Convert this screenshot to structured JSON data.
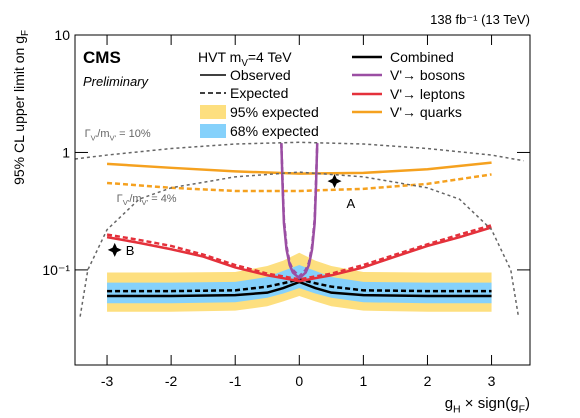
{
  "chart_data": {
    "type": "line",
    "lumi_label": "138 fb⁻¹ (13 TeV)",
    "experiment": "CMS",
    "status": "Preliminary",
    "y_label": [
      "95% CL upper limit on g",
      "F"
    ],
    "x_label": [
      "g",
      "H",
      " × sign(g",
      "F",
      ")"
    ],
    "log_y": true,
    "xlim": [
      -3.5,
      3.6
    ],
    "ylim": [
      0.0155,
      10
    ],
    "xticks": [
      -3,
      -2,
      -1,
      0,
      1,
      2,
      3
    ],
    "yticks": [
      {
        "value": 0.1,
        "label": "10⁻¹"
      },
      1,
      10
    ],
    "legend_header": [
      "HVT m",
      "V",
      "=4 TeV"
    ],
    "legend": [
      {
        "label": "Observed",
        "color": "#000000",
        "style": "solid"
      },
      {
        "label": "Expected",
        "color": "#000000",
        "style": "dashed"
      },
      {
        "label": "95% expected",
        "color": "#fddf7f",
        "style": "band"
      },
      {
        "label": "68% expected",
        "color": "#85d1fb",
        "style": "band"
      },
      {
        "label": "Combined",
        "color": "#000000",
        "style": "solid"
      },
      {
        "label": "V'→ bosons",
        "color": "#9b4ea3",
        "style": "solid"
      },
      {
        "label": "V'→ leptons",
        "color": "#e4313b",
        "style": "solid"
      },
      {
        "label": "V'→ quarks",
        "color": "#f5a11f",
        "style": "solid"
      }
    ],
    "bands": [
      {
        "color": "#fddf7f",
        "x": [
          -3,
          -2,
          -1,
          -0.5,
          -0.25,
          0,
          0.25,
          0.5,
          1,
          2,
          3
        ],
        "lower": [
          0.044,
          0.044,
          0.045,
          0.049,
          0.054,
          0.06,
          0.054,
          0.049,
          0.045,
          0.044,
          0.044
        ],
        "upper": [
          0.095,
          0.095,
          0.096,
          0.108,
          0.12,
          0.14,
          0.12,
          0.108,
          0.096,
          0.095,
          0.095
        ]
      },
      {
        "color": "#85d1fb",
        "x": [
          -3,
          -2,
          -1,
          -0.5,
          -0.25,
          0,
          0.25,
          0.5,
          1,
          2,
          3
        ],
        "lower": [
          0.052,
          0.052,
          0.053,
          0.058,
          0.063,
          0.07,
          0.063,
          0.058,
          0.053,
          0.052,
          0.052
        ],
        "upper": [
          0.078,
          0.078,
          0.079,
          0.087,
          0.098,
          0.11,
          0.098,
          0.087,
          0.079,
          0.078,
          0.078
        ]
      }
    ],
    "series": [
      {
        "color": "#000000",
        "style": "dashed",
        "x": [
          -3,
          -2,
          -1,
          -0.5,
          -0.25,
          0,
          0.25,
          0.5,
          1,
          2,
          3
        ],
        "values": [
          0.066,
          0.066,
          0.067,
          0.072,
          0.077,
          0.083,
          0.077,
          0.072,
          0.067,
          0.066,
          0.066
        ]
      },
      {
        "color": "#000000",
        "style": "solid",
        "x": [
          -3,
          -2,
          -1,
          -0.5,
          -0.25,
          0,
          0.25,
          0.5,
          1,
          2,
          3
        ],
        "values": [
          0.06,
          0.06,
          0.061,
          0.064,
          0.07,
          0.079,
          0.07,
          0.064,
          0.061,
          0.06,
          0.06
        ]
      },
      {
        "color": "#f5a11f",
        "style": "dashed",
        "x": [
          -3,
          -2,
          -1,
          0,
          1,
          2,
          3
        ],
        "values": [
          0.55,
          0.5,
          0.47,
          0.47,
          0.49,
          0.54,
          0.65
        ]
      },
      {
        "color": "#f5a11f",
        "style": "solid",
        "x": [
          -3,
          -2,
          -1,
          0,
          1,
          2,
          3
        ],
        "values": [
          0.8,
          0.74,
          0.69,
          0.66,
          0.67,
          0.72,
          0.82
        ]
      },
      {
        "color": "#e4313b",
        "style": "dashed",
        "x": [
          -3,
          -2.5,
          -2,
          -1.5,
          -1,
          -0.5,
          -0.25,
          0,
          0.25,
          0.5,
          1,
          1.5,
          2,
          2.5,
          3
        ],
        "values": [
          0.2,
          0.18,
          0.16,
          0.135,
          0.11,
          0.093,
          0.088,
          0.083,
          0.088,
          0.093,
          0.11,
          0.135,
          0.165,
          0.2,
          0.24
        ]
      },
      {
        "color": "#e4313b",
        "style": "solid",
        "x": [
          -3,
          -2.5,
          -2,
          -1.5,
          -1,
          -0.5,
          -0.25,
          0,
          0.25,
          0.5,
          1,
          1.5,
          2,
          2.5,
          3
        ],
        "values": [
          0.19,
          0.17,
          0.15,
          0.13,
          0.105,
          0.09,
          0.085,
          0.08,
          0.085,
          0.09,
          0.105,
          0.13,
          0.16,
          0.19,
          0.23
        ]
      },
      {
        "color": "#9b4ea3",
        "style": "dashed",
        "x": [
          -0.28,
          -0.26,
          -0.24,
          -0.2,
          -0.15,
          -0.1,
          0,
          0.1,
          0.15,
          0.2,
          0.24,
          0.26,
          0.28
        ],
        "values": [
          1.2,
          0.55,
          0.27,
          0.16,
          0.115,
          0.1,
          0.088,
          0.1,
          0.115,
          0.16,
          0.27,
          0.55,
          1.2
        ]
      },
      {
        "color": "#9b4ea3",
        "style": "solid",
        "x": [
          -0.28,
          -0.26,
          -0.24,
          -0.2,
          -0.15,
          -0.1,
          0,
          0.1,
          0.15,
          0.2,
          0.24,
          0.26,
          0.28
        ],
        "values": [
          1.2,
          0.5,
          0.25,
          0.15,
          0.11,
          0.095,
          0.085,
          0.095,
          0.11,
          0.15,
          0.25,
          0.5,
          1.2
        ]
      },
      {
        "color": "#666666",
        "style": "dotted",
        "label": [
          "Γ",
          "V'",
          "/m",
          "V'",
          " = 10%"
        ],
        "label_at": [
          -3.35,
          1.35
        ],
        "x": [
          -3.5,
          -3,
          -2,
          -1,
          0,
          1,
          2,
          3,
          3.5
        ],
        "values": [
          0.88,
          0.95,
          1.08,
          1.18,
          1.22,
          1.18,
          1.08,
          0.95,
          0.85
        ]
      },
      {
        "color": "#666666",
        "style": "dotted",
        "label": [
          "Γ",
          "V'",
          "/m",
          "V'",
          " = 4%"
        ],
        "label_at": [
          -2.85,
          0.38
        ],
        "x": [
          -3.42,
          -3.3,
          -3,
          -2.5,
          -2,
          -1,
          0,
          1,
          2,
          2.5,
          3,
          3.3,
          3.42
        ],
        "values": [
          0.04,
          0.1,
          0.22,
          0.4,
          0.5,
          0.62,
          0.68,
          0.62,
          0.5,
          0.4,
          0.22,
          0.1,
          0.04
        ]
      }
    ],
    "points": [
      {
        "label": "A",
        "x": 0.55,
        "y": 0.57
      },
      {
        "label": "B",
        "x": -2.88,
        "y": 0.148
      }
    ]
  }
}
